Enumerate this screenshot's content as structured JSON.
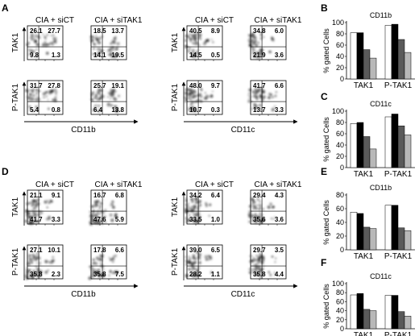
{
  "figure": {
    "letters": {
      "A": "A",
      "B": "B",
      "C": "C",
      "D": "D",
      "E": "E",
      "F": "F"
    },
    "conditions": {
      "control": "CIA + siCT",
      "knockdown": "CIA + siTAK1"
    },
    "marker_labels": {
      "tak1": "TAK1",
      "ptak1": "P-TAK1",
      "cd11b": "CD11b",
      "cd11c": "CD11c"
    }
  },
  "flow_panels": [
    {
      "letter": "A",
      "groups": [
        {
          "x_label": "CD11b",
          "rows": [
            {
              "y_label": "TAK1",
              "plots": [
                {
                  "condition": "CIA + siCT",
                  "quadrants": [
                    "26.1",
                    "27.7",
                    "9.8",
                    "1.3"
                  ]
                },
                {
                  "condition": "CIA + siTAK1",
                  "quadrants": [
                    "18.5",
                    "13.7",
                    "14.1",
                    "19.5"
                  ]
                }
              ]
            },
            {
              "y_label": "P-TAK1",
              "plots": [
                {
                  "condition": "",
                  "quadrants": [
                    "31.7",
                    "27.8",
                    "5.4",
                    "0.8"
                  ]
                },
                {
                  "condition": "",
                  "quadrants": [
                    "25.7",
                    "19.1",
                    "6.4",
                    "13.8"
                  ]
                }
              ]
            }
          ]
        },
        {
          "x_label": "CD11c",
          "rows": [
            {
              "y_label": "TAK1",
              "plots": [
                {
                  "condition": "CIA + siCT",
                  "quadrants": [
                    "40.5",
                    "8.9",
                    "14.5",
                    "0.5"
                  ]
                },
                {
                  "condition": "CIA + siTAK1",
                  "quadrants": [
                    "34.8",
                    "6.0",
                    "21.9",
                    "3.6"
                  ]
                }
              ]
            },
            {
              "y_label": "P-TAK1",
              "plots": [
                {
                  "condition": "",
                  "quadrants": [
                    "48.0",
                    "9.7",
                    "10.7",
                    "0.3"
                  ]
                },
                {
                  "condition": "",
                  "quadrants": [
                    "41.7",
                    "6.6",
                    "13.7",
                    "3.3"
                  ]
                }
              ]
            }
          ]
        }
      ]
    },
    {
      "letter": "D",
      "groups": [
        {
          "x_label": "CD11b",
          "rows": [
            {
              "y_label": "TAK1",
              "plots": [
                {
                  "condition": "CIA + siCT",
                  "quadrants": [
                    "21.1",
                    "9.1",
                    "41.7",
                    "3.3"
                  ]
                },
                {
                  "condition": "CIA + siTAK1",
                  "quadrants": [
                    "16.7",
                    "6.8",
                    "47.6",
                    "5.9"
                  ]
                }
              ]
            },
            {
              "y_label": "P-TAK1",
              "plots": [
                {
                  "condition": "",
                  "quadrants": [
                    "27.1",
                    "10.1",
                    "35.8",
                    "2.3"
                  ]
                },
                {
                  "condition": "",
                  "quadrants": [
                    "17.8",
                    "6.6",
                    "35.8",
                    "7.5"
                  ]
                }
              ]
            }
          ]
        },
        {
          "x_label": "CD11c",
          "rows": [
            {
              "y_label": "TAK1",
              "plots": [
                {
                  "condition": "CIA + siCT",
                  "quadrants": [
                    "34.2",
                    "6.4",
                    "33.5",
                    "1.0"
                  ]
                },
                {
                  "condition": "CIA + siTAK1",
                  "quadrants": [
                    "29.4",
                    "4.3",
                    "35.6",
                    "3.6"
                  ]
                }
              ]
            },
            {
              "y_label": "P-TAK1",
              "plots": [
                {
                  "condition": "",
                  "quadrants": [
                    "39.0",
                    "6.5",
                    "28.2",
                    "1.1"
                  ]
                },
                {
                  "condition": "",
                  "quadrants": [
                    "29.7",
                    "3.5",
                    "35.8",
                    "4.4"
                  ]
                }
              ]
            }
          ]
        }
      ]
    }
  ],
  "chart_data": [
    {
      "type": "bar",
      "letter": "B",
      "title": "CD11b",
      "ylabel": "% gated Cells",
      "categories": [
        "TAK1",
        "P-TAK1"
      ],
      "yticks": [
        "0",
        "20",
        "40",
        "60",
        "80",
        "100"
      ],
      "ylim": [
        0,
        100
      ],
      "bar_colors": [
        "#ffffff",
        "#000000",
        "#5a5a5a",
        "#b8b8b8"
      ],
      "groups": [
        {
          "category": "TAK1",
          "values": [
            82,
            82,
            52,
            37
          ]
        },
        {
          "category": "P-TAK1",
          "values": [
            95,
            97,
            70,
            47
          ]
        }
      ]
    },
    {
      "type": "bar",
      "letter": "C",
      "title": "CD11c",
      "ylabel": "% gated Cells",
      "categories": [
        "TAK1",
        "P-TAK1"
      ],
      "yticks": [
        "0",
        "20",
        "40",
        "60",
        "80",
        "100"
      ],
      "ylim": [
        0,
        100
      ],
      "bar_colors": [
        "#ffffff",
        "#000000",
        "#5a5a5a",
        "#b8b8b8"
      ],
      "groups": [
        {
          "category": "TAK1",
          "values": [
            78,
            80,
            55,
            33
          ]
        },
        {
          "category": "P-TAK1",
          "values": [
            90,
            95,
            74,
            58
          ]
        }
      ]
    },
    {
      "type": "bar",
      "letter": "E",
      "title": "CD11b",
      "ylabel": "% gated Cells",
      "categories": [
        "TAK1",
        "P-TAK1"
      ],
      "yticks": [
        "0",
        "20",
        "40",
        "60",
        "80"
      ],
      "ylim": [
        0,
        80
      ],
      "bar_colors": [
        "#ffffff",
        "#000000",
        "#5a5a5a",
        "#b8b8b8"
      ],
      "groups": [
        {
          "category": "TAK1",
          "values": [
            55,
            53,
            33,
            31
          ]
        },
        {
          "category": "P-TAK1",
          "values": [
            65,
            65,
            32,
            28
          ]
        }
      ]
    },
    {
      "type": "bar",
      "letter": "F",
      "title": "CD11c",
      "ylabel": "% gated Cells",
      "categories": [
        "TAK1",
        "P-TAK1"
      ],
      "yticks": [
        "0",
        "20",
        "40",
        "60",
        "80",
        "100"
      ],
      "ylim": [
        0,
        100
      ],
      "bar_colors": [
        "#ffffff",
        "#000000",
        "#5a5a5a",
        "#b8b8b8"
      ],
      "groups": [
        {
          "category": "TAK1",
          "values": [
            75,
            78,
            43,
            40
          ]
        },
        {
          "category": "P-TAK1",
          "values": [
            74,
            74,
            38,
            28
          ]
        }
      ]
    }
  ]
}
